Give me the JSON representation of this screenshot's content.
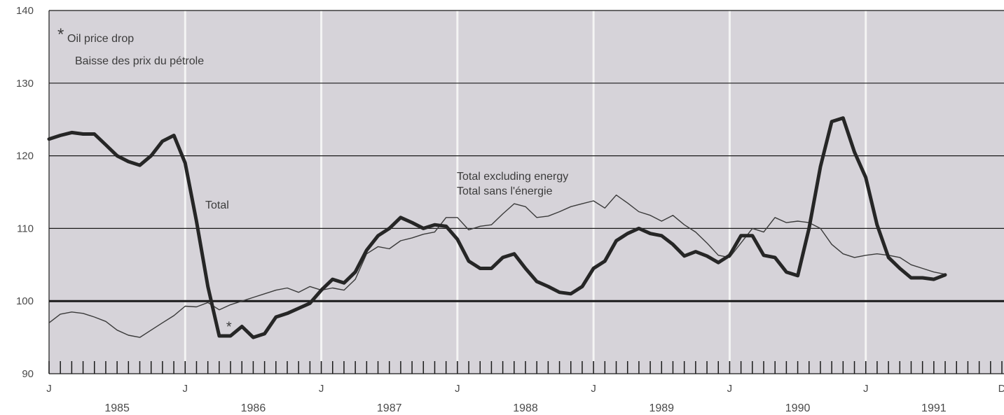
{
  "chart_data": {
    "type": "line",
    "y_range": [
      90,
      140
    ],
    "x_range": [
      1985.0,
      1992.0
    ],
    "y_ticks": [
      90,
      100,
      110,
      120,
      130,
      140
    ],
    "month_labels": [
      {
        "label": "J",
        "x": 1985.0
      },
      {
        "label": "J",
        "x": 1986.0
      },
      {
        "label": "J",
        "x": 1987.0
      },
      {
        "label": "J",
        "x": 1988.0
      },
      {
        "label": "J",
        "x": 1989.0
      },
      {
        "label": "J",
        "x": 1990.0
      },
      {
        "label": "J",
        "x": 1991.0
      },
      {
        "label": "D",
        "x": 1992.0
      }
    ],
    "year_labels": [
      "1985",
      "1986",
      "1987",
      "1988",
      "1989",
      "1990",
      "1991"
    ],
    "reference_line": 100,
    "grid": true,
    "background_color": "#d6d3d9",
    "series": [
      {
        "name": "Total",
        "style": "thick",
        "points": [
          [
            1985.0,
            122.3
          ],
          [
            1985.083,
            122.8
          ],
          [
            1985.167,
            123.2
          ],
          [
            1985.25,
            123.0
          ],
          [
            1985.333,
            123.0
          ],
          [
            1985.417,
            121.5
          ],
          [
            1985.5,
            120.0
          ],
          [
            1985.583,
            119.2
          ],
          [
            1985.667,
            118.7
          ],
          [
            1985.75,
            120.0
          ],
          [
            1985.833,
            122.0
          ],
          [
            1985.917,
            122.8
          ],
          [
            1986.0,
            119.0
          ],
          [
            1986.083,
            111.0
          ],
          [
            1986.167,
            102.0
          ],
          [
            1986.25,
            95.2
          ],
          [
            1986.333,
            95.2
          ],
          [
            1986.417,
            96.5
          ],
          [
            1986.5,
            95.0
          ],
          [
            1986.583,
            95.5
          ],
          [
            1986.667,
            97.8
          ],
          [
            1986.75,
            98.3
          ],
          [
            1986.833,
            99.0
          ],
          [
            1986.917,
            99.7
          ],
          [
            1987.0,
            101.5
          ],
          [
            1987.083,
            103.0
          ],
          [
            1987.167,
            102.5
          ],
          [
            1987.25,
            104.0
          ],
          [
            1987.333,
            107.0
          ],
          [
            1987.417,
            109.0
          ],
          [
            1987.5,
            110.0
          ],
          [
            1987.583,
            111.5
          ],
          [
            1987.667,
            110.8
          ],
          [
            1987.75,
            110.0
          ],
          [
            1987.833,
            110.5
          ],
          [
            1987.917,
            110.3
          ],
          [
            1988.0,
            108.5
          ],
          [
            1988.083,
            105.5
          ],
          [
            1988.167,
            104.5
          ],
          [
            1988.25,
            104.5
          ],
          [
            1988.333,
            106.0
          ],
          [
            1988.417,
            106.5
          ],
          [
            1988.5,
            104.5
          ],
          [
            1988.583,
            102.7
          ],
          [
            1988.667,
            102.0
          ],
          [
            1988.75,
            101.2
          ],
          [
            1988.833,
            101.0
          ],
          [
            1988.917,
            102.0
          ],
          [
            1989.0,
            104.5
          ],
          [
            1989.083,
            105.5
          ],
          [
            1989.167,
            108.3
          ],
          [
            1989.25,
            109.3
          ],
          [
            1989.333,
            110.0
          ],
          [
            1989.417,
            109.3
          ],
          [
            1989.5,
            109.0
          ],
          [
            1989.583,
            107.8
          ],
          [
            1989.667,
            106.2
          ],
          [
            1989.75,
            106.8
          ],
          [
            1989.833,
            106.2
          ],
          [
            1989.917,
            105.3
          ],
          [
            1990.0,
            106.3
          ],
          [
            1990.083,
            109.0
          ],
          [
            1990.167,
            109.0
          ],
          [
            1990.25,
            106.3
          ],
          [
            1990.333,
            106.0
          ],
          [
            1990.417,
            104.0
          ],
          [
            1990.5,
            103.5
          ],
          [
            1990.583,
            110.0
          ],
          [
            1990.667,
            118.5
          ],
          [
            1990.75,
            124.7
          ],
          [
            1990.833,
            125.2
          ],
          [
            1990.917,
            120.5
          ],
          [
            1991.0,
            117.0
          ],
          [
            1991.083,
            110.5
          ],
          [
            1991.167,
            106.0
          ],
          [
            1991.25,
            104.5
          ],
          [
            1991.333,
            103.2
          ],
          [
            1991.417,
            103.2
          ],
          [
            1991.5,
            103.0
          ],
          [
            1991.583,
            103.6
          ]
        ]
      },
      {
        "name": "Total excluding energy / Total sans l'énergie",
        "style": "thin",
        "points": [
          [
            1985.0,
            97.0
          ],
          [
            1985.083,
            98.2
          ],
          [
            1985.167,
            98.5
          ],
          [
            1985.25,
            98.3
          ],
          [
            1985.333,
            97.8
          ],
          [
            1985.417,
            97.2
          ],
          [
            1985.5,
            96.0
          ],
          [
            1985.583,
            95.3
          ],
          [
            1985.667,
            95.0
          ],
          [
            1985.75,
            96.0
          ],
          [
            1985.833,
            97.0
          ],
          [
            1985.917,
            98.0
          ],
          [
            1986.0,
            99.3
          ],
          [
            1986.083,
            99.2
          ],
          [
            1986.167,
            99.8
          ],
          [
            1986.25,
            98.8
          ],
          [
            1986.333,
            99.5
          ],
          [
            1986.417,
            100.0
          ],
          [
            1986.5,
            100.5
          ],
          [
            1986.583,
            101.0
          ],
          [
            1986.667,
            101.5
          ],
          [
            1986.75,
            101.8
          ],
          [
            1986.833,
            101.2
          ],
          [
            1986.917,
            102.0
          ],
          [
            1987.0,
            101.5
          ],
          [
            1987.083,
            101.8
          ],
          [
            1987.167,
            101.5
          ],
          [
            1987.25,
            103.0
          ],
          [
            1987.333,
            106.5
          ],
          [
            1987.417,
            107.5
          ],
          [
            1987.5,
            107.2
          ],
          [
            1987.583,
            108.3
          ],
          [
            1987.667,
            108.7
          ],
          [
            1987.75,
            109.2
          ],
          [
            1987.833,
            109.5
          ],
          [
            1987.917,
            111.5
          ],
          [
            1988.0,
            111.5
          ],
          [
            1988.083,
            109.8
          ],
          [
            1988.167,
            110.3
          ],
          [
            1988.25,
            110.5
          ],
          [
            1988.333,
            112.0
          ],
          [
            1988.417,
            113.4
          ],
          [
            1988.5,
            113.0
          ],
          [
            1988.583,
            111.5
          ],
          [
            1988.667,
            111.7
          ],
          [
            1988.75,
            112.3
          ],
          [
            1988.833,
            113.0
          ],
          [
            1988.917,
            113.4
          ],
          [
            1989.0,
            113.8
          ],
          [
            1989.083,
            112.8
          ],
          [
            1989.167,
            114.6
          ],
          [
            1989.25,
            113.5
          ],
          [
            1989.333,
            112.3
          ],
          [
            1989.417,
            111.8
          ],
          [
            1989.5,
            111.0
          ],
          [
            1989.583,
            111.8
          ],
          [
            1989.667,
            110.5
          ],
          [
            1989.75,
            109.5
          ],
          [
            1989.833,
            108.0
          ],
          [
            1989.917,
            106.3
          ],
          [
            1990.0,
            106.0
          ],
          [
            1990.083,
            108.0
          ],
          [
            1990.167,
            110.0
          ],
          [
            1990.25,
            109.5
          ],
          [
            1990.333,
            111.5
          ],
          [
            1990.417,
            110.8
          ],
          [
            1990.5,
            111.0
          ],
          [
            1990.583,
            110.8
          ],
          [
            1990.667,
            110.0
          ],
          [
            1990.75,
            107.8
          ],
          [
            1990.833,
            106.5
          ],
          [
            1990.917,
            106.0
          ],
          [
            1991.0,
            106.3
          ],
          [
            1991.083,
            106.5
          ],
          [
            1991.167,
            106.3
          ],
          [
            1991.25,
            106.0
          ],
          [
            1991.333,
            105.0
          ],
          [
            1991.417,
            104.5
          ],
          [
            1991.5,
            104.0
          ],
          [
            1991.583,
            103.7
          ]
        ]
      }
    ],
    "annotations": {
      "oil_price_drop_en": "Oil price drop",
      "oil_price_drop_fr": "Baisse des prix du pétrole",
      "asterisk": "*",
      "total_label": "Total",
      "excl_energy_en": "Total excluding energy",
      "excl_energy_fr": "Total sans l'énergie",
      "asterisk_point": [
        1986.25,
        97.2
      ]
    }
  }
}
